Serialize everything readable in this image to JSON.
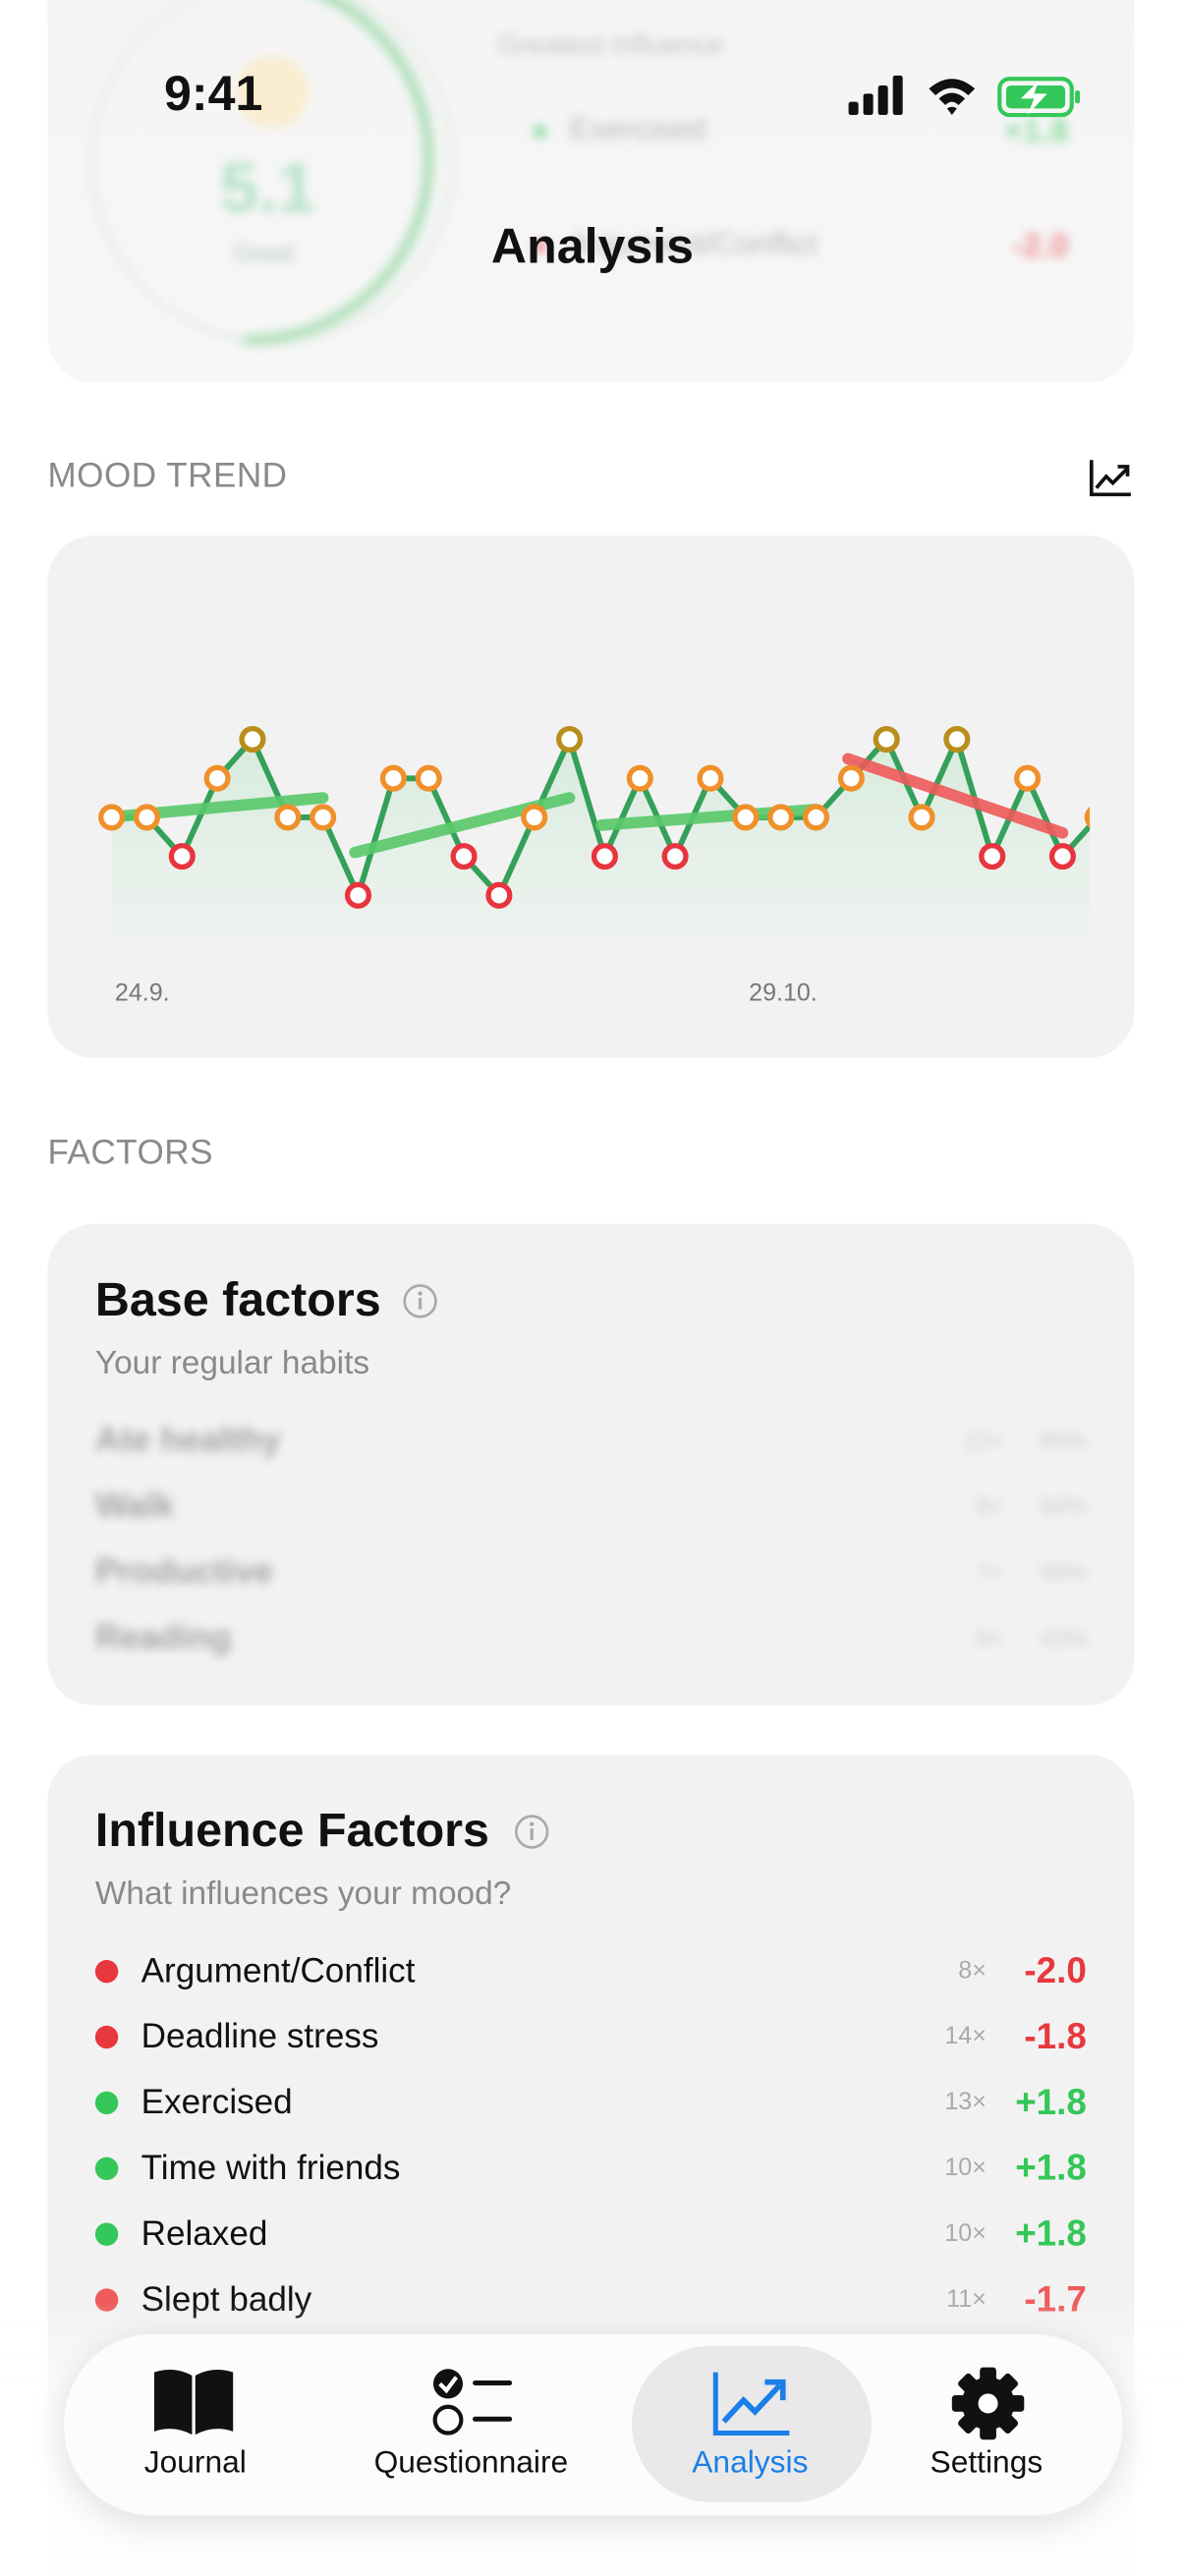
{
  "status_bar": {
    "time": "9:41"
  },
  "header": {
    "title": "Analysis",
    "score": "5.1",
    "score_label": "Good",
    "influence_title": "Greatest influence",
    "top_factors": [
      {
        "name": "Exercised",
        "value": "+1.8",
        "color": "#34c759"
      },
      {
        "name": "Argument/Conflict",
        "value": "-2.0",
        "color": "#e8383d"
      }
    ]
  },
  "chart_data": {
    "type": "line",
    "title": "MOOD TREND",
    "categories": [
      "24.9.",
      null,
      null,
      null,
      null,
      null,
      null,
      null,
      null,
      null,
      null,
      null,
      null,
      null,
      null,
      null,
      null,
      null,
      "29.10.",
      null,
      null,
      null,
      null,
      null,
      null,
      null,
      null,
      null,
      null
    ],
    "values": [
      5,
      5,
      4,
      6,
      7,
      5,
      5,
      3,
      6,
      6,
      4,
      3,
      5,
      7,
      4,
      6,
      4,
      6,
      5,
      5,
      5,
      6,
      7,
      5,
      7,
      4,
      6,
      4,
      5
    ],
    "color": "#34a05a",
    "point_colors": [
      "#f0902a",
      "#f0902a",
      "#e8343f",
      "#f0902a",
      "#b98e1c",
      "#f0902a",
      "#f0902a",
      "#e8343f",
      "#f0902a",
      "#f0902a",
      "#e8343f",
      "#e8343f",
      "#f0902a",
      "#b98e1c",
      "#e8343f",
      "#f0902a",
      "#e8343f",
      "#f0902a",
      "#f0902a",
      "#f0902a",
      "#f0902a",
      "#f0902a",
      "#b98e1c",
      "#f0902a",
      "#b98e1c",
      "#e8343f",
      "#f0902a",
      "#e8343f",
      "#f0902a"
    ],
    "trends": [
      {
        "start": 0,
        "end": 6,
        "from": 5.0,
        "to": 5.5,
        "color": "#5ac86a"
      },
      {
        "start": 7,
        "end": 13,
        "from": 4.1,
        "to": 5.5,
        "color": "#5ac86a"
      },
      {
        "start": 14,
        "end": 20,
        "from": 4.8,
        "to": 5.2,
        "color": "#5ac86a"
      },
      {
        "start": 21,
        "end": 27,
        "from": 6.5,
        "to": 4.6,
        "color": "#ef5a5a"
      }
    ]
  },
  "factors": {
    "title": "FACTORS",
    "base": {
      "title": "Base factors",
      "subtitle": "Your regular habits",
      "rows": [
        {
          "name": "Ate healthy",
          "count": "12×",
          "share": "85%"
        },
        {
          "name": "Walk",
          "count": "9×",
          "share": "64%"
        },
        {
          "name": "Productive",
          "count": "7×",
          "share": "50%"
        },
        {
          "name": "Reading",
          "count": "6×",
          "share": "43%"
        }
      ]
    },
    "influence": {
      "title": "Influence Factors",
      "subtitle": "What influences your mood?",
      "rows": [
        {
          "name": "Argument/Conflict",
          "count": "8×",
          "value": "-2.0",
          "color": "#e8383d"
        },
        {
          "name": "Deadline stress",
          "count": "14×",
          "value": "-1.8",
          "color": "#e8383d"
        },
        {
          "name": "Exercised",
          "count": "13×",
          "value": "+1.8",
          "color": "#34c759"
        },
        {
          "name": "Time with friends",
          "count": "10×",
          "value": "+1.8",
          "color": "#34c759"
        },
        {
          "name": "Relaxed",
          "count": "10×",
          "value": "+1.8",
          "color": "#34c759"
        },
        {
          "name": "Slept badly",
          "count": "11×",
          "value": "-1.7",
          "color": "#ef5a5a"
        }
      ]
    }
  },
  "tab_bar": {
    "tabs": [
      "Journal",
      "Questionnaire",
      "Analysis",
      "Settings"
    ],
    "active": 2,
    "active_color": "#1a7fe8"
  }
}
